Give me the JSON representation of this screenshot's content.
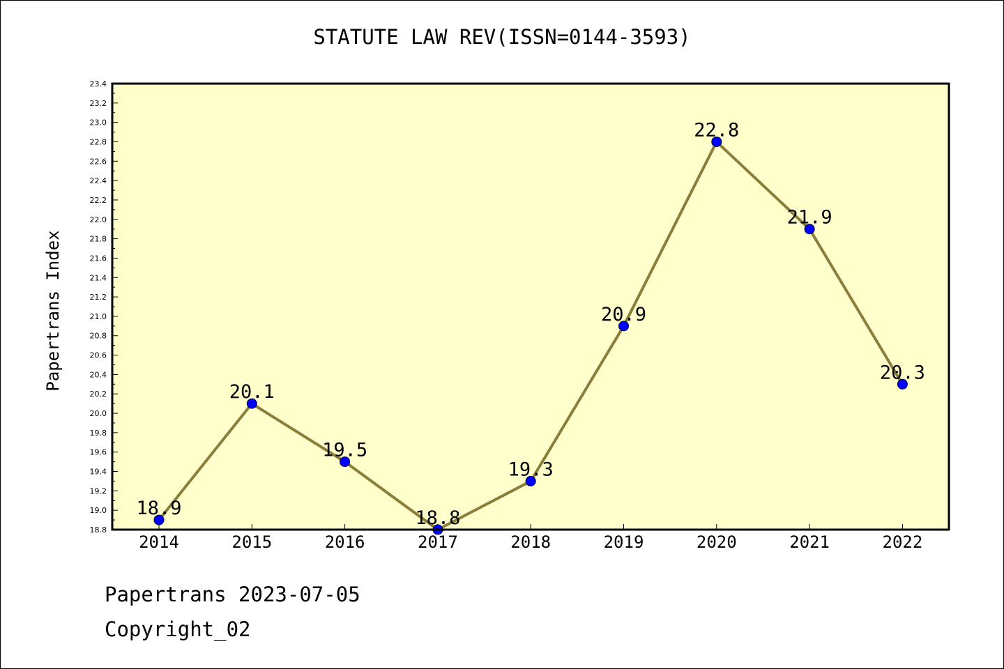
{
  "title": "STATUTE LAW REV(ISSN=0144-3593)",
  "footer": {
    "line1": "Papertrans 2023-07-05",
    "line2": "Copyright_02"
  },
  "colors": {
    "plot_background": "#ffffcc",
    "line": "#8b7d3a",
    "marker": "#0000ff"
  },
  "chart_data": {
    "type": "line",
    "title": "STATUTE LAW REV(ISSN=0144-3593)",
    "xlabel": "",
    "ylabel": "Papertrans Index",
    "x": [
      "2014",
      "2015",
      "2016",
      "2017",
      "2018",
      "2019",
      "2020",
      "2021",
      "2022"
    ],
    "series": [
      {
        "values": [
          18.9,
          20.1,
          19.5,
          18.8,
          19.3,
          20.9,
          22.8,
          21.9,
          20.3
        ],
        "labels": [
          "18.9",
          "20.1",
          "19.5",
          "18.8",
          "19.3",
          "20.9",
          "22.8",
          "21.9",
          "20.3"
        ]
      }
    ],
    "ylim": [
      18.8,
      23.4
    ],
    "yticks": [
      "18.8",
      "19.0",
      "19.2",
      "19.4",
      "19.6",
      "19.8",
      "20.0",
      "20.2",
      "20.4",
      "20.6",
      "20.8",
      "21.0",
      "21.2",
      "21.4",
      "21.6",
      "21.8",
      "22.0",
      "22.2",
      "22.4",
      "22.6",
      "22.8",
      "23.0",
      "23.2",
      "23.4"
    ],
    "grid": false,
    "legend": "none"
  }
}
